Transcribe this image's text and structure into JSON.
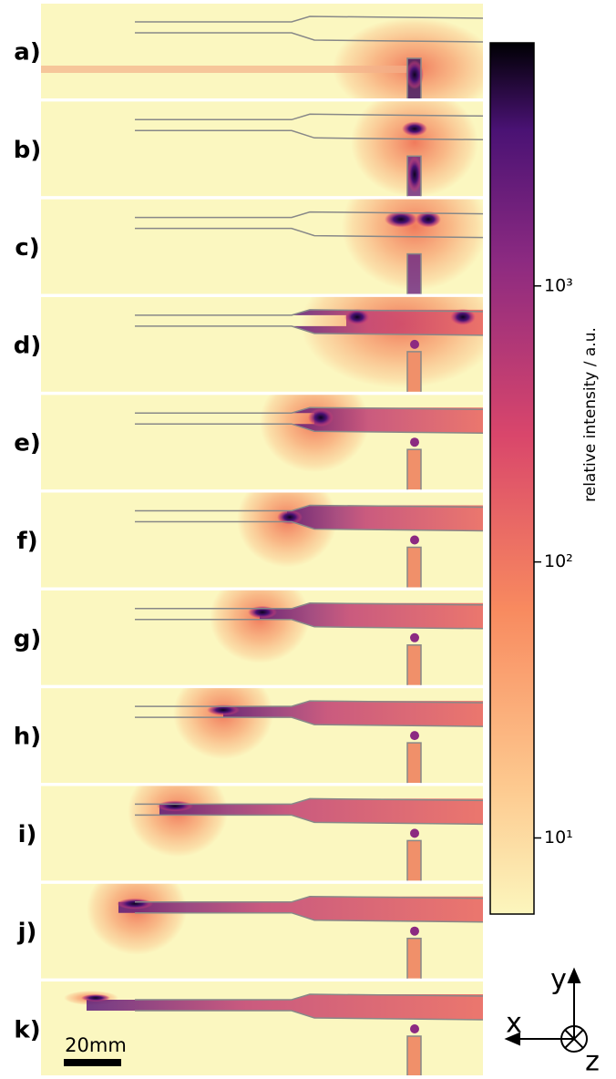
{
  "panels": [
    {
      "label": "a)"
    },
    {
      "label": "b)"
    },
    {
      "label": "c)"
    },
    {
      "label": "d)"
    },
    {
      "label": "e)"
    },
    {
      "label": "f)"
    },
    {
      "label": "g)"
    },
    {
      "label": "h)"
    },
    {
      "label": "i)"
    },
    {
      "label": "j)"
    },
    {
      "label": "k)"
    }
  ],
  "colorbar": {
    "label": "relative intensity / a.u.",
    "log": true,
    "lim": [
      5.3,
      7600
    ],
    "ticks": [
      {
        "value": 10,
        "label": "10¹"
      },
      {
        "value": 100,
        "label": "10²"
      },
      {
        "value": 1000,
        "label": "10³"
      }
    ]
  },
  "scale_bar": {
    "label": "20mm"
  },
  "axes": {
    "x": "x",
    "y": "y",
    "z": "z"
  }
}
